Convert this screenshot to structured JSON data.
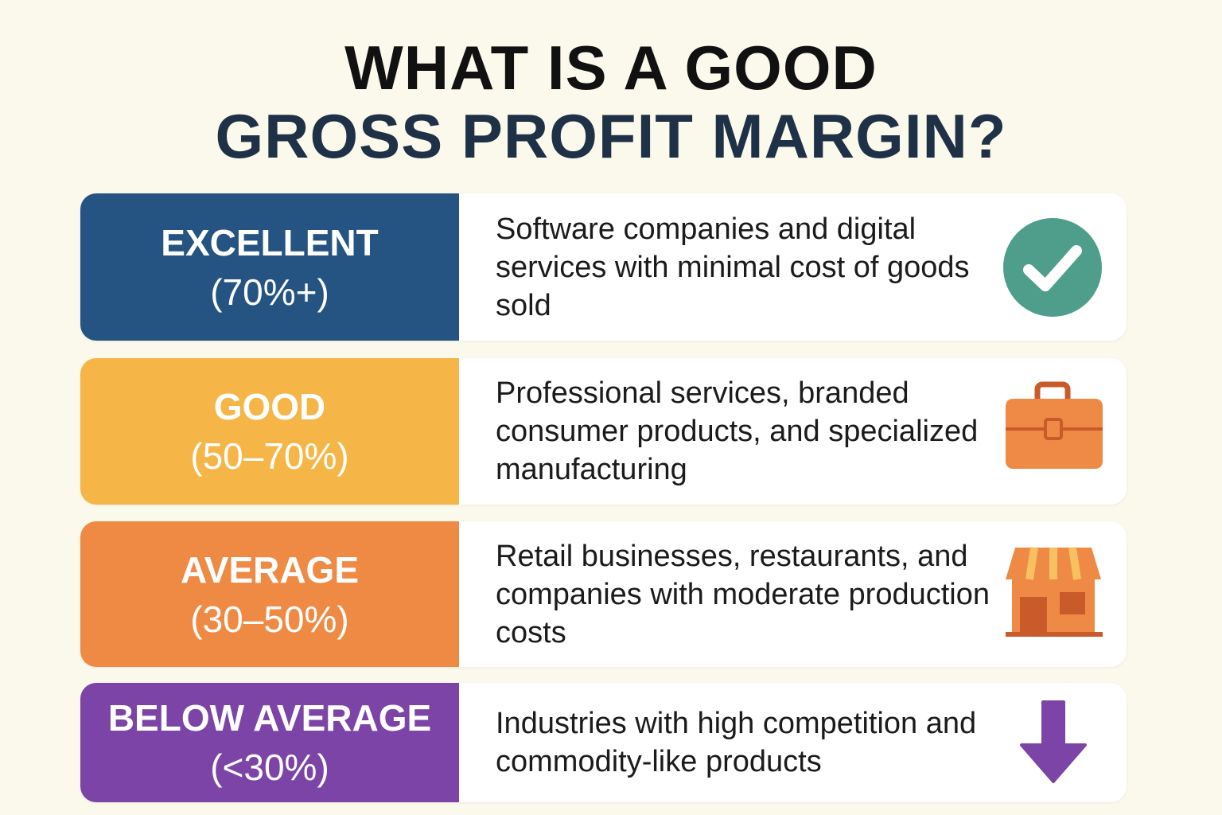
{
  "header": {
    "title_lines": [
      "WHAT IS A GOOD",
      "GROSS PROFIT MARGIN?"
    ]
  },
  "rows": [
    {
      "label": "EXCELLENT",
      "range": "(70%+)",
      "description": "Software companies and digital services with minimal cost of goods sold"
    },
    {
      "label": "GOOD",
      "range": "(50–70%)",
      "description": "Professional services, branded consumer products, and specialized manufacturing"
    },
    {
      "label": "AVERAGE",
      "range": "(30–50%)",
      "description": "Retail businesses, restaurants, and companies with moderate production costs"
    },
    {
      "label": "BELOW AVERAGE",
      "range": "(<30%)",
      "description": "Industries with high competition and commodity-like products"
    }
  ]
}
